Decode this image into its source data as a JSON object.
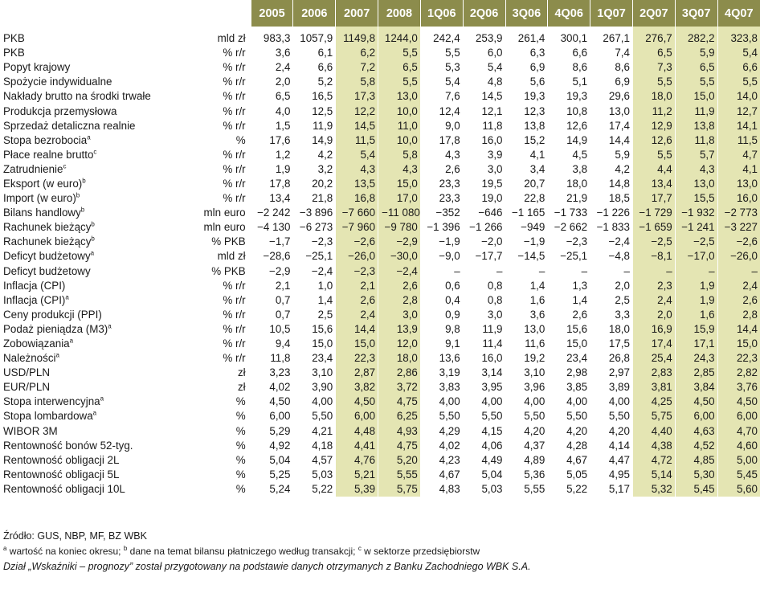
{
  "headers": [
    "2005",
    "2006",
    "2007",
    "2008",
    "1Q06",
    "2Q06",
    "3Q06",
    "4Q06",
    "1Q07",
    "2Q07",
    "3Q07",
    "4Q07"
  ],
  "highlight": {
    "strong": [
      2,
      3,
      9,
      10,
      11
    ],
    "light": []
  },
  "colors": {
    "header_bg": "#8c8c4c",
    "forecast_bg": "#e4e5b3"
  },
  "rows": [
    {
      "name": "PKB",
      "sup": "",
      "unit": "mld zł",
      "values": [
        "983,3",
        "1057,9",
        "1149,8",
        "1244,0",
        "242,4",
        "253,9",
        "261,4",
        "300,1",
        "267,1",
        "276,7",
        "282,2",
        "323,8"
      ]
    },
    {
      "name": "PKB",
      "sup": "",
      "unit": "% r/r",
      "values": [
        "3,6",
        "6,1",
        "6,2",
        "5,5",
        "5,5",
        "6,0",
        "6,3",
        "6,6",
        "7,4",
        "6,5",
        "5,9",
        "5,4"
      ]
    },
    {
      "name": "Popyt krajowy",
      "sup": "",
      "unit": "% r/r",
      "values": [
        "2,4",
        "6,6",
        "7,2",
        "6,5",
        "5,3",
        "5,4",
        "6,9",
        "8,6",
        "8,6",
        "7,3",
        "6,5",
        "6,6"
      ]
    },
    {
      "name": "Spożycie indywidualne",
      "sup": "",
      "unit": "% r/r",
      "values": [
        "2,0",
        "5,2",
        "5,8",
        "5,5",
        "5,4",
        "4,8",
        "5,6",
        "5,1",
        "6,9",
        "5,5",
        "5,5",
        "5,5"
      ]
    },
    {
      "name": "Nakłady brutto na środki trwałe",
      "sup": "",
      "unit": "% r/r",
      "values": [
        "6,5",
        "16,5",
        "17,3",
        "13,0",
        "7,6",
        "14,5",
        "19,3",
        "19,3",
        "29,6",
        "18,0",
        "15,0",
        "14,0"
      ]
    },
    {
      "name": "Produkcja przemysłowa",
      "sup": "",
      "unit": "% r/r",
      "values": [
        "4,0",
        "12,5",
        "12,2",
        "10,0",
        "12,4",
        "12,1",
        "12,3",
        "10,8",
        "13,0",
        "11,2",
        "11,9",
        "12,7"
      ]
    },
    {
      "name": "Sprzedaż detaliczna realnie",
      "sup": "",
      "unit": "% r/r",
      "values": [
        "1,5",
        "11,9",
        "14,5",
        "11,0",
        "9,0",
        "11,8",
        "13,8",
        "12,6",
        "17,4",
        "12,9",
        "13,8",
        "14,1"
      ]
    },
    {
      "name": "Stopa bezrobocia",
      "sup": "a",
      "unit": "%",
      "values": [
        "17,6",
        "14,9",
        "11,5",
        "10,0",
        "17,8",
        "16,0",
        "15,2",
        "14,9",
        "14,4",
        "12,6",
        "11,8",
        "11,5"
      ]
    },
    {
      "name": "Płace realne brutto",
      "sup": "c",
      "unit": "% r/r",
      "values": [
        "1,2",
        "4,2",
        "5,4",
        "5,8",
        "4,3",
        "3,9",
        "4,1",
        "4,5",
        "5,9",
        "5,5",
        "5,7",
        "4,7"
      ]
    },
    {
      "name": "Zatrudnienie",
      "sup": "c",
      "unit": "% r/r",
      "values": [
        "1,9",
        "3,2",
        "4,3",
        "4,3",
        "2,6",
        "3,0",
        "3,4",
        "3,8",
        "4,2",
        "4,4",
        "4,3",
        "4,1"
      ]
    },
    {
      "name": "Eksport (w euro)",
      "sup": "b",
      "unit": "% r/r",
      "values": [
        "17,8",
        "20,2",
        "13,5",
        "15,0",
        "23,3",
        "19,5",
        "20,7",
        "18,0",
        "14,8",
        "13,4",
        "13,0",
        "13,0"
      ]
    },
    {
      "name": "Import (w euro)",
      "sup": "b",
      "unit": "% r/r",
      "values": [
        "13,4",
        "21,8",
        "16,8",
        "17,0",
        "23,3",
        "19,0",
        "22,8",
        "21,9",
        "18,5",
        "17,7",
        "15,5",
        "16,0"
      ]
    },
    {
      "name": "Bilans handlowy",
      "sup": "b",
      "unit": "mln euro",
      "values": [
        "−2 242",
        "−3 896",
        "−7 660",
        "−11 080",
        "−352",
        "−646",
        "−1 165",
        "−1 733",
        "−1 226",
        "−1 729",
        "−1 932",
        "−2 773"
      ]
    },
    {
      "name": "Rachunek bieżący",
      "sup": "b",
      "unit": "mln euro",
      "values": [
        "−4 130",
        "−6 273",
        "−7 960",
        "−9 780",
        "−1 396",
        "−1 266",
        "−949",
        "−2 662",
        "−1 833",
        "−1 659",
        "−1 241",
        "−3 227"
      ]
    },
    {
      "name": "Rachunek bieżący",
      "sup": "b",
      "unit": "% PKB",
      "values": [
        "−1,7",
        "−2,3",
        "−2,6",
        "−2,9",
        "−1,9",
        "−2,0",
        "−1,9",
        "−2,3",
        "−2,4",
        "−2,5",
        "−2,5",
        "−2,6"
      ]
    },
    {
      "name": "Deficyt budżetowy",
      "sup": "a",
      "unit": "mld zł",
      "values": [
        "−28,6",
        "−25,1",
        "−26,0",
        "−30,0",
        "−9,0",
        "−17,7",
        "−14,5",
        "−25,1",
        "−4,8",
        "−8,1",
        "−17,0",
        "−26,0"
      ]
    },
    {
      "name": "Deficyt budżetowy",
      "sup": "",
      "unit": "% PKB",
      "values": [
        "−2,9",
        "−2,4",
        "−2,3",
        "−2,4",
        "–",
        "–",
        "–",
        "–",
        "–",
        "–",
        "–",
        "–"
      ]
    },
    {
      "name": "Inflacja (CPI)",
      "sup": "",
      "unit": "% r/r",
      "values": [
        "2,1",
        "1,0",
        "2,1",
        "2,6",
        "0,6",
        "0,8",
        "1,4",
        "1,3",
        "2,0",
        "2,3",
        "1,9",
        "2,4"
      ]
    },
    {
      "name": "Inflacja (CPI)",
      "sup": "a",
      "unit": "% r/r",
      "values": [
        "0,7",
        "1,4",
        "2,6",
        "2,8",
        "0,4",
        "0,8",
        "1,6",
        "1,4",
        "2,5",
        "2,4",
        "1,9",
        "2,6"
      ]
    },
    {
      "name": "Ceny produkcji (PPI)",
      "sup": "",
      "unit": "% r/r",
      "values": [
        "0,7",
        "2,5",
        "2,4",
        "3,0",
        "0,9",
        "3,0",
        "3,6",
        "2,6",
        "3,3",
        "2,0",
        "1,6",
        "2,8"
      ]
    },
    {
      "name": "Podaż pieniądza (M3)",
      "sup": "a",
      "unit": "% r/r",
      "values": [
        "10,5",
        "15,6",
        "14,4",
        "13,9",
        "9,8",
        "11,9",
        "13,0",
        "15,6",
        "18,0",
        "16,9",
        "15,9",
        "14,4"
      ]
    },
    {
      "name": "Zobowiązania",
      "sup": "a",
      "unit": "% r/r",
      "values": [
        "9,4",
        "15,0",
        "15,0",
        "12,0",
        "9,1",
        "11,4",
        "11,6",
        "15,0",
        "17,5",
        "17,4",
        "17,1",
        "15,0"
      ]
    },
    {
      "name": "Należności",
      "sup": "a",
      "unit": "% r/r",
      "values": [
        "11,8",
        "23,4",
        "22,3",
        "18,0",
        "13,6",
        "16,0",
        "19,2",
        "23,4",
        "26,8",
        "25,4",
        "24,3",
        "22,3"
      ]
    },
    {
      "name": "USD/PLN",
      "sup": "",
      "unit": "zł",
      "values": [
        "3,23",
        "3,10",
        "2,87",
        "2,86",
        "3,19",
        "3,14",
        "3,10",
        "2,98",
        "2,97",
        "2,83",
        "2,85",
        "2,82"
      ]
    },
    {
      "name": "EUR/PLN",
      "sup": "",
      "unit": "zł",
      "values": [
        "4,02",
        "3,90",
        "3,82",
        "3,72",
        "3,83",
        "3,95",
        "3,96",
        "3,85",
        "3,89",
        "3,81",
        "3,84",
        "3,76"
      ]
    },
    {
      "name": "Stopa interwencyjna",
      "sup": "a",
      "unit": "%",
      "values": [
        "4,50",
        "4,00",
        "4,50",
        "4,75",
        "4,00",
        "4,00",
        "4,00",
        "4,00",
        "4,00",
        "4,25",
        "4,50",
        "4,50"
      ]
    },
    {
      "name": "Stopa lombardowa",
      "sup": "a",
      "unit": "%",
      "values": [
        "6,00",
        "5,50",
        "6,00",
        "6,25",
        "5,50",
        "5,50",
        "5,50",
        "5,50",
        "5,50",
        "5,75",
        "6,00",
        "6,00"
      ]
    },
    {
      "name": "WIBOR 3M",
      "sup": "",
      "unit": "%",
      "values": [
        "5,29",
        "4,21",
        "4,48",
        "4,93",
        "4,29",
        "4,15",
        "4,20",
        "4,20",
        "4,20",
        "4,40",
        "4,63",
        "4,70"
      ]
    },
    {
      "name": "Rentowność bonów 52-tyg.",
      "sup": "",
      "unit": "%",
      "values": [
        "4,92",
        "4,18",
        "4,41",
        "4,75",
        "4,02",
        "4,06",
        "4,37",
        "4,28",
        "4,14",
        "4,38",
        "4,52",
        "4,60"
      ]
    },
    {
      "name": "Rentowność obligacji 2L",
      "sup": "",
      "unit": "%",
      "values": [
        "5,04",
        "4,57",
        "4,76",
        "5,20",
        "4,23",
        "4,49",
        "4,89",
        "4,67",
        "4,47",
        "4,72",
        "4,85",
        "5,00"
      ]
    },
    {
      "name": "Rentowność obligacji 5L",
      "sup": "",
      "unit": "%",
      "values": [
        "5,25",
        "5,03",
        "5,21",
        "5,55",
        "4,67",
        "5,04",
        "5,36",
        "5,05",
        "4,95",
        "5,14",
        "5,30",
        "5,45"
      ]
    },
    {
      "name": "Rentowność obligacji 10L",
      "sup": "",
      "unit": "%",
      "values": [
        "5,24",
        "5,22",
        "5,39",
        "5,75",
        "4,83",
        "5,03",
        "5,55",
        "5,22",
        "5,17",
        "5,32",
        "5,45",
        "5,60"
      ]
    }
  ],
  "footer": {
    "source": "Źródło: GUS, NBP, MF, BZ WBK",
    "note_a_mark": "a",
    "note_a": " wartość na koniec okresu; ",
    "note_b_mark": "b",
    "note_b": " dane na temat bilansu płatniczego według transakcji; ",
    "note_c_mark": "c",
    "note_c": " w sektorze przedsiębiorstw",
    "credit": "Dział „Wskaźniki – prognozy” został przygotowany na podstawie danych otrzymanych z Banku Zachodniego WBK S.A."
  }
}
